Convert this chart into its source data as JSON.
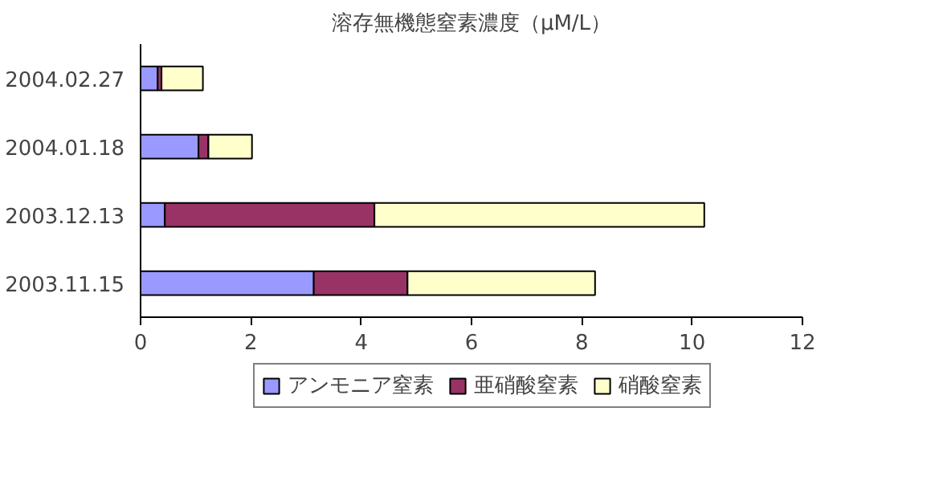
{
  "chart_data": {
    "type": "bar",
    "orientation": "horizontal",
    "stacked": true,
    "title": "溶存無機態窒素濃度（μM/L）",
    "categories": [
      "2004.02.27",
      "2004.01.18",
      "2003.12.13",
      "2003.11.15"
    ],
    "series": [
      {
        "name": "アンモニア窒素",
        "color": "#9999ff",
        "values": [
          0.31,
          1.05,
          0.44,
          3.14
        ]
      },
      {
        "name": "亜硝酸窒素",
        "color": "#993366",
        "values": [
          0.07,
          0.18,
          3.8,
          1.7
        ]
      },
      {
        "name": "硝酸窒素",
        "color": "#ffffcc",
        "values": [
          0.75,
          0.79,
          5.98,
          3.4
        ]
      }
    ],
    "xlim": [
      0,
      12
    ],
    "xticks": [
      0,
      2,
      4,
      6,
      8,
      10,
      12
    ],
    "grid": false,
    "legend": "bottom"
  }
}
